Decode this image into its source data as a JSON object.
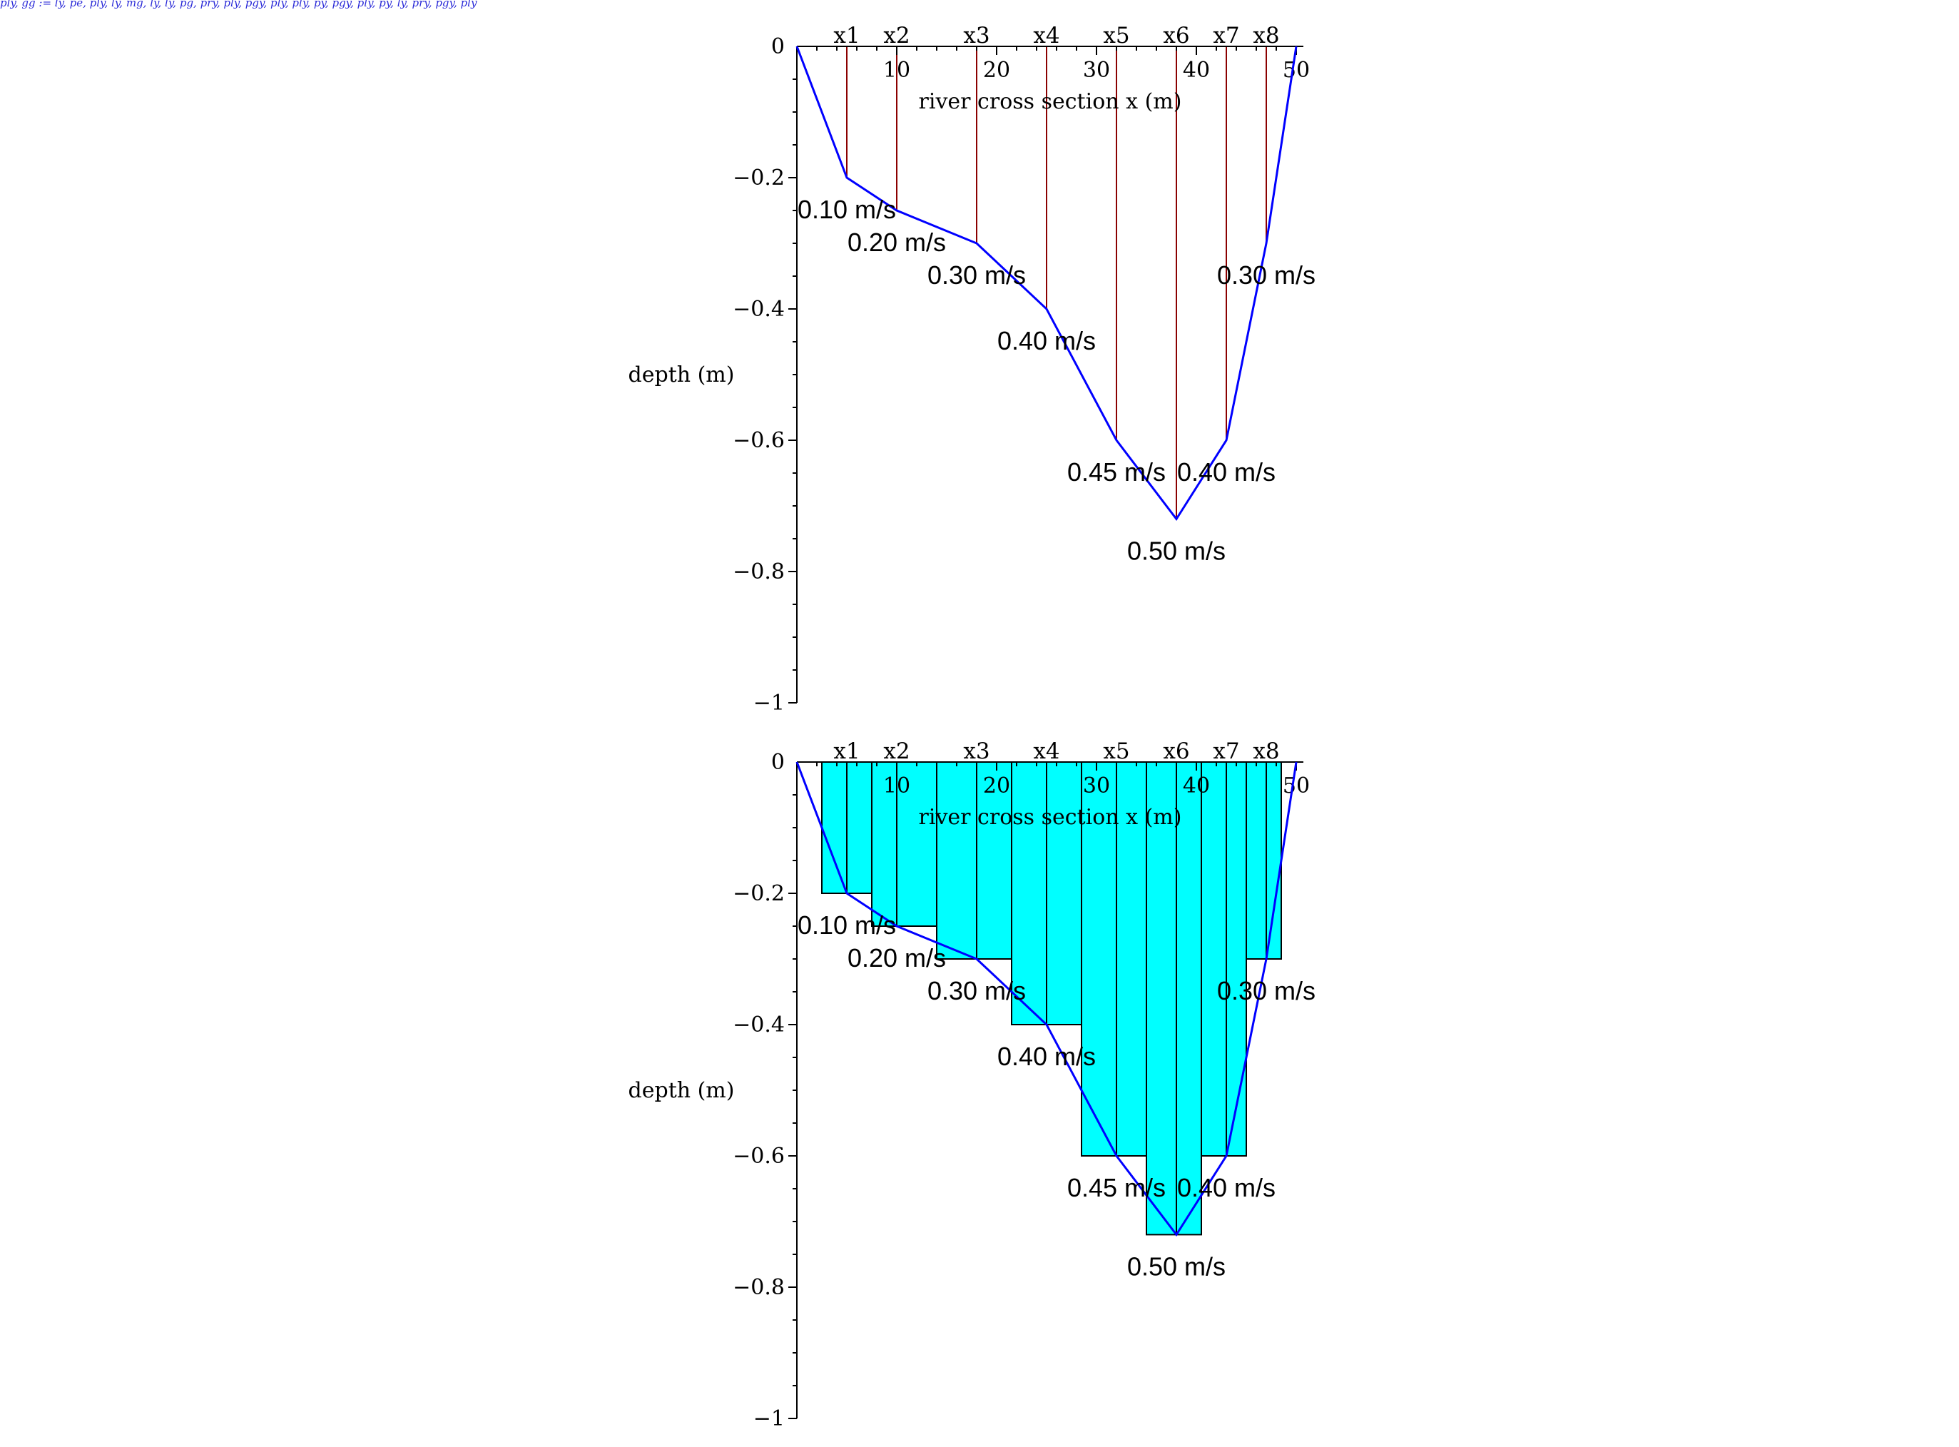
{
  "top_text": "ply, gg := ly, pe, ply, ly, mg, ly, ly, pg, pry, ply, pgy, ply, ply, py, pgy, ply, py, ly, pry, pgy, ply",
  "chart_data": [
    {
      "type": "line",
      "title": "",
      "xlabel": "river cross section x (m)",
      "ylabel": "depth (m)",
      "xlim": [
        0,
        50
      ],
      "ylim": [
        -1,
        0
      ],
      "x_ticks": [
        10,
        20,
        30,
        40,
        50
      ],
      "y_ticks": [
        0,
        -0.2,
        -0.4,
        -0.6,
        -0.8,
        -1
      ],
      "y_tick_labels": [
        "0",
        "−0.2",
        "−0.4",
        "−0.6",
        "−0.8",
        "−1"
      ],
      "profile": {
        "x": [
          0,
          5,
          10,
          18,
          25,
          32,
          38,
          43,
          47,
          50
        ],
        "y": [
          0,
          -0.2,
          -0.25,
          -0.3,
          -0.4,
          -0.6,
          -0.72,
          -0.6,
          -0.3,
          0
        ]
      },
      "stations": [
        {
          "name": "x1",
          "x": 5,
          "depth": -0.2,
          "velocity": "0.10 m/s"
        },
        {
          "name": "x2",
          "x": 10,
          "depth": -0.25,
          "velocity": "0.20 m/s"
        },
        {
          "name": "x3",
          "x": 18,
          "depth": -0.3,
          "velocity": "0.30 m/s"
        },
        {
          "name": "x4",
          "x": 25,
          "depth": -0.4,
          "velocity": "0.40 m/s"
        },
        {
          "name": "x5",
          "x": 32,
          "depth": -0.6,
          "velocity": "0.45 m/s"
        },
        {
          "name": "x6",
          "x": 38,
          "depth": -0.72,
          "velocity": "0.50 m/s"
        },
        {
          "name": "x7",
          "x": 43,
          "depth": -0.6,
          "velocity": "0.40 m/s"
        },
        {
          "name": "x8",
          "x": 47,
          "depth": -0.3,
          "velocity": "0.30 m/s"
        }
      ],
      "colors": {
        "profile": "#0000ff",
        "verticals": "#8b0000"
      }
    },
    {
      "type": "area",
      "title": "",
      "xlabel": "river cross section x (m)",
      "ylabel": "depth (m)",
      "xlim": [
        0,
        50
      ],
      "ylim": [
        -1,
        0
      ],
      "x_ticks": [
        10,
        20,
        30,
        40,
        50
      ],
      "y_ticks": [
        0,
        -0.2,
        -0.4,
        -0.6,
        -0.8,
        -1
      ],
      "y_tick_labels": [
        "0",
        "−0.2",
        "−0.4",
        "−0.6",
        "−0.8",
        "−1"
      ],
      "profile": {
        "x": [
          0,
          5,
          10,
          18,
          25,
          32,
          38,
          43,
          47,
          50
        ],
        "y": [
          0,
          -0.2,
          -0.25,
          -0.3,
          -0.4,
          -0.6,
          -0.72,
          -0.6,
          -0.3,
          0
        ]
      },
      "panels": [
        {
          "x0": 2.5,
          "x1": 7.5,
          "depth": -0.2
        },
        {
          "x0": 7.5,
          "x1": 14,
          "depth": -0.25
        },
        {
          "x0": 14,
          "x1": 21.5,
          "depth": -0.3
        },
        {
          "x0": 21.5,
          "x1": 28.5,
          "depth": -0.4
        },
        {
          "x0": 28.5,
          "x1": 35,
          "depth": -0.6
        },
        {
          "x0": 35,
          "x1": 40.5,
          "depth": -0.72
        },
        {
          "x0": 40.5,
          "x1": 45,
          "depth": -0.6
        },
        {
          "x0": 45,
          "x1": 48.5,
          "depth": -0.3
        }
      ],
      "stations": [
        {
          "name": "x1",
          "x": 5,
          "depth": -0.2,
          "velocity": "0.10 m/s"
        },
        {
          "name": "x2",
          "x": 10,
          "depth": -0.25,
          "velocity": "0.20 m/s"
        },
        {
          "name": "x3",
          "x": 18,
          "depth": -0.3,
          "velocity": "0.30 m/s"
        },
        {
          "name": "x4",
          "x": 25,
          "depth": -0.4,
          "velocity": "0.40 m/s"
        },
        {
          "name": "x5",
          "x": 32,
          "depth": -0.6,
          "velocity": "0.45 m/s"
        },
        {
          "name": "x6",
          "x": 38,
          "depth": -0.72,
          "velocity": "0.50 m/s"
        },
        {
          "name": "x7",
          "x": 43,
          "depth": -0.6,
          "velocity": "0.40 m/s"
        },
        {
          "name": "x8",
          "x": 47,
          "depth": -0.3,
          "velocity": "0.30 m/s"
        }
      ],
      "colors": {
        "profile": "#0000ff",
        "panel_fill": "#00ffff",
        "panel_stroke": "#000000"
      }
    }
  ]
}
